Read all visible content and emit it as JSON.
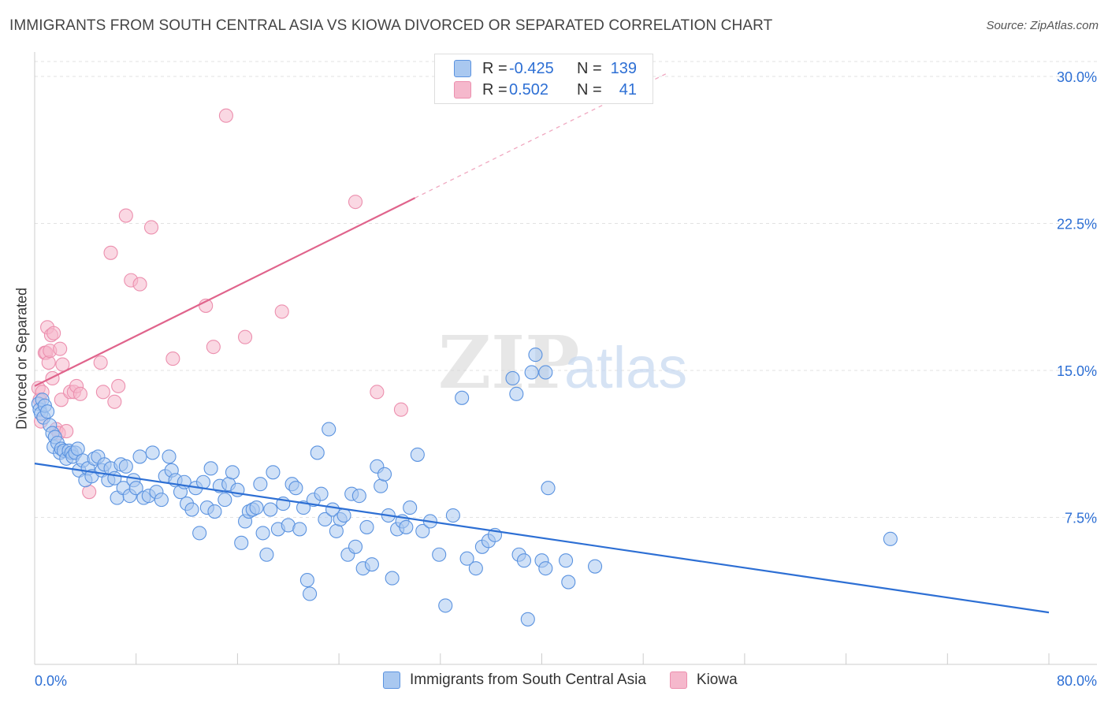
{
  "title": "IMMIGRANTS FROM SOUTH CENTRAL ASIA VS KIOWA DIVORCED OR SEPARATED CORRELATION CHART",
  "source": "Source: ZipAtlas.com",
  "watermark": {
    "zip": "ZIP",
    "atlas": "atlas"
  },
  "legend_top": [
    {
      "r_label": "R =",
      "r_value": "-0.425",
      "n_label": "N =",
      "n_value": "139",
      "color": "#a9c8f0"
    },
    {
      "r_label": "R =",
      "r_value": "0.502",
      "n_label": "N =",
      "n_value": "41",
      "color": "#f5b8cc"
    }
  ],
  "chart_data": {
    "type": "scatter",
    "title": "IMMIGRANTS FROM SOUTH CENTRAL ASIA VS KIOWA DIVORCED OR SEPARATED CORRELATION CHART",
    "xlabel": "",
    "ylabel": "Divorced or Separated",
    "xlim": [
      0,
      80
    ],
    "ylim": [
      0,
      30
    ],
    "x_tick_labels": [
      "0.0%",
      "80.0%"
    ],
    "y_tick_values": [
      7.5,
      15.0,
      22.5,
      30.0
    ],
    "y_tick_labels": [
      "7.5%",
      "15.0%",
      "22.5%",
      "30.0%"
    ],
    "grid": true,
    "legend_position": "bottom",
    "series": [
      {
        "name": "Immigrants from South Central Asia",
        "color": "#5b93e0",
        "fill": "#a9c8f0",
        "line_color": "#2d6fd4",
        "trend": {
          "x": [
            0,
            80
          ],
          "y": [
            10.25,
            2.65
          ],
          "dashed_after": null
        },
        "points": [
          [
            0.3,
            13.3
          ],
          [
            0.4,
            13.0
          ],
          [
            0.5,
            12.8
          ],
          [
            0.6,
            13.5
          ],
          [
            0.7,
            12.6
          ],
          [
            0.8,
            13.2
          ],
          [
            1.0,
            12.9
          ],
          [
            1.2,
            12.2
          ],
          [
            1.4,
            11.8
          ],
          [
            1.5,
            11.1
          ],
          [
            1.6,
            11.6
          ],
          [
            1.8,
            11.3
          ],
          [
            2.0,
            10.8
          ],
          [
            2.1,
            11.0
          ],
          [
            2.3,
            10.9
          ],
          [
            2.5,
            10.5
          ],
          [
            2.7,
            10.9
          ],
          [
            2.9,
            10.8
          ],
          [
            3.0,
            10.6
          ],
          [
            3.2,
            10.8
          ],
          [
            3.4,
            11.0
          ],
          [
            3.5,
            9.9
          ],
          [
            3.8,
            10.4
          ],
          [
            4.0,
            9.4
          ],
          [
            4.2,
            10.0
          ],
          [
            4.5,
            9.6
          ],
          [
            4.7,
            10.5
          ],
          [
            5.0,
            10.6
          ],
          [
            5.3,
            9.9
          ],
          [
            5.5,
            10.2
          ],
          [
            5.8,
            9.4
          ],
          [
            6.0,
            10.0
          ],
          [
            6.3,
            9.5
          ],
          [
            6.5,
            8.5
          ],
          [
            6.8,
            10.2
          ],
          [
            7.0,
            9.0
          ],
          [
            7.2,
            10.1
          ],
          [
            7.5,
            8.6
          ],
          [
            7.8,
            9.4
          ],
          [
            8.0,
            9.0
          ],
          [
            8.3,
            10.6
          ],
          [
            8.6,
            8.5
          ],
          [
            9.0,
            8.6
          ],
          [
            9.3,
            10.8
          ],
          [
            9.6,
            8.8
          ],
          [
            10.0,
            8.4
          ],
          [
            10.3,
            9.6
          ],
          [
            10.6,
            10.6
          ],
          [
            10.8,
            9.9
          ],
          [
            11.1,
            9.4
          ],
          [
            11.5,
            8.8
          ],
          [
            11.8,
            9.3
          ],
          [
            12.0,
            8.2
          ],
          [
            12.4,
            7.9
          ],
          [
            12.7,
            9.0
          ],
          [
            13.0,
            6.7
          ],
          [
            13.3,
            9.3
          ],
          [
            13.6,
            8.0
          ],
          [
            13.9,
            10.0
          ],
          [
            14.2,
            7.8
          ],
          [
            14.6,
            9.1
          ],
          [
            15.0,
            8.4
          ],
          [
            15.3,
            9.2
          ],
          [
            15.6,
            9.8
          ],
          [
            16.0,
            8.9
          ],
          [
            16.3,
            6.2
          ],
          [
            16.6,
            7.3
          ],
          [
            16.9,
            7.8
          ],
          [
            17.2,
            7.9
          ],
          [
            17.5,
            8.0
          ],
          [
            17.8,
            9.2
          ],
          [
            18.0,
            6.7
          ],
          [
            18.3,
            5.6
          ],
          [
            18.6,
            7.9
          ],
          [
            18.8,
            9.8
          ],
          [
            19.2,
            6.9
          ],
          [
            19.6,
            8.2
          ],
          [
            20.0,
            7.1
          ],
          [
            20.3,
            9.2
          ],
          [
            20.6,
            9.0
          ],
          [
            20.9,
            6.9
          ],
          [
            21.2,
            8.0
          ],
          [
            21.5,
            4.3
          ],
          [
            21.7,
            3.6
          ],
          [
            22.0,
            8.4
          ],
          [
            22.3,
            10.8
          ],
          [
            22.6,
            8.7
          ],
          [
            22.9,
            7.4
          ],
          [
            23.2,
            12.0
          ],
          [
            23.5,
            7.9
          ],
          [
            23.8,
            6.8
          ],
          [
            24.1,
            7.4
          ],
          [
            24.4,
            7.6
          ],
          [
            24.7,
            5.6
          ],
          [
            25.0,
            8.7
          ],
          [
            25.3,
            6.0
          ],
          [
            25.6,
            8.6
          ],
          [
            25.9,
            4.9
          ],
          [
            26.2,
            7.0
          ],
          [
            26.6,
            5.1
          ],
          [
            27.0,
            10.1
          ],
          [
            27.3,
            9.1
          ],
          [
            27.6,
            9.7
          ],
          [
            27.9,
            7.6
          ],
          [
            28.2,
            4.4
          ],
          [
            28.6,
            6.9
          ],
          [
            29.0,
            7.3
          ],
          [
            29.3,
            7.0
          ],
          [
            29.6,
            8.0
          ],
          [
            30.2,
            10.7
          ],
          [
            30.6,
            6.8
          ],
          [
            31.2,
            7.3
          ],
          [
            31.9,
            5.6
          ],
          [
            32.4,
            3.0
          ],
          [
            33.0,
            7.6
          ],
          [
            33.7,
            13.6
          ],
          [
            34.1,
            5.4
          ],
          [
            34.8,
            4.9
          ],
          [
            35.3,
            6.0
          ],
          [
            35.8,
            6.3
          ],
          [
            36.3,
            6.6
          ],
          [
            37.7,
            14.6
          ],
          [
            38.0,
            13.8
          ],
          [
            38.2,
            5.6
          ],
          [
            38.6,
            5.3
          ],
          [
            38.9,
            2.3
          ],
          [
            39.2,
            14.9
          ],
          [
            39.5,
            15.8
          ],
          [
            40.0,
            5.3
          ],
          [
            40.3,
            4.9
          ],
          [
            40.3,
            14.9
          ],
          [
            40.5,
            9.0
          ],
          [
            41.9,
            5.3
          ],
          [
            42.1,
            4.2
          ],
          [
            44.2,
            5.0
          ],
          [
            67.5,
            6.4
          ]
        ]
      },
      {
        "name": "Kiowa",
        "color": "#ec8fae",
        "fill": "#f5b8cc",
        "line_color": "#e0648c",
        "trend": {
          "x": [
            0,
            30
          ],
          "y": [
            14.2,
            23.8
          ],
          "dashed_to": [
            50,
            30.2
          ]
        },
        "points": [
          [
            0.3,
            14.1
          ],
          [
            0.4,
            13.5
          ],
          [
            0.5,
            12.4
          ],
          [
            0.6,
            13.9
          ],
          [
            0.8,
            15.9
          ],
          [
            0.9,
            15.9
          ],
          [
            1.0,
            17.2
          ],
          [
            1.1,
            15.4
          ],
          [
            1.2,
            16.0
          ],
          [
            1.3,
            16.8
          ],
          [
            1.4,
            14.6
          ],
          [
            1.5,
            16.9
          ],
          [
            1.7,
            12.0
          ],
          [
            1.9,
            11.8
          ],
          [
            2.0,
            16.1
          ],
          [
            2.1,
            13.5
          ],
          [
            2.2,
            15.3
          ],
          [
            2.5,
            11.9
          ],
          [
            2.8,
            13.9
          ],
          [
            3.1,
            13.9
          ],
          [
            3.3,
            14.2
          ],
          [
            3.6,
            13.8
          ],
          [
            4.3,
            8.8
          ],
          [
            5.2,
            15.4
          ],
          [
            5.4,
            13.9
          ],
          [
            6.0,
            21.0
          ],
          [
            6.3,
            13.4
          ],
          [
            6.6,
            14.2
          ],
          [
            7.2,
            22.9
          ],
          [
            7.6,
            19.6
          ],
          [
            8.3,
            19.4
          ],
          [
            9.2,
            22.3
          ],
          [
            10.9,
            15.6
          ],
          [
            13.5,
            18.3
          ],
          [
            14.1,
            16.2
          ],
          [
            15.1,
            28.0
          ],
          [
            16.6,
            16.7
          ],
          [
            19.5,
            18.0
          ],
          [
            25.3,
            23.6
          ],
          [
            27.0,
            13.9
          ],
          [
            28.9,
            13.0
          ]
        ]
      }
    ]
  },
  "bottom_legend": {
    "item1": "Immigrants from South Central Asia",
    "item2": "Kiowa"
  }
}
